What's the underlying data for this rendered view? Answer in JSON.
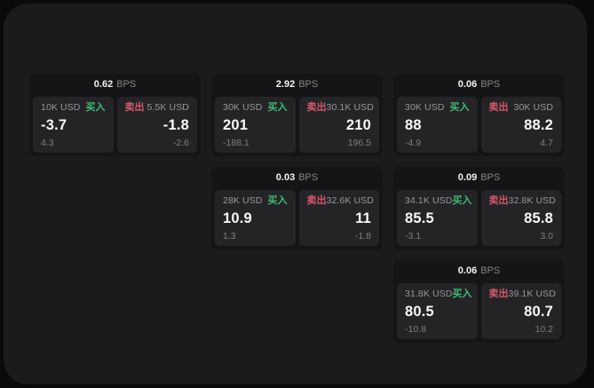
{
  "labels": {
    "bps": "BPS",
    "buy": "买入",
    "sell": "卖出"
  },
  "colors": {
    "page_background": "#0a0a0b",
    "panel_background": "#1b1b1d",
    "card_background": "#151517",
    "tile_background": "#242427",
    "buy_green": "#3dbd74",
    "sell_red": "#d8566b",
    "primary_text": "#fafafa",
    "muted_text": "#97979b"
  },
  "cards": [
    {
      "bps": "0.62",
      "buy_amount": "10K USD",
      "buy_price": "-3.7",
      "buy_delta": "4.3",
      "sell_amount": "5.5K USD",
      "sell_price": "-1.8",
      "sell_delta": "-2.6"
    },
    {
      "bps": "2.92",
      "buy_amount": "30K USD",
      "buy_price": "201",
      "buy_delta": "-188.1",
      "sell_amount": "30.1K USD",
      "sell_price": "210",
      "sell_delta": "196.5"
    },
    {
      "bps": "0.06",
      "buy_amount": "30K USD",
      "buy_price": "88",
      "buy_delta": "-4.9",
      "sell_amount": "30K USD",
      "sell_price": "88.2",
      "sell_delta": "4.7"
    },
    {
      "bps": "0.03",
      "buy_amount": "28K USD",
      "buy_price": "10.9",
      "buy_delta": "1.3",
      "sell_amount": "32.6K USD",
      "sell_price": "11",
      "sell_delta": "-1.8"
    },
    {
      "bps": "0.09",
      "buy_amount": "34.1K USD",
      "buy_price": "85.5",
      "buy_delta": "-3.1",
      "sell_amount": "32.8K USD",
      "sell_price": "85.8",
      "sell_delta": "3.0"
    },
    {
      "bps": "0.06",
      "buy_amount": "31.8K USD",
      "buy_price": "80.5",
      "buy_delta": "-10.8",
      "sell_amount": "39.1K USD",
      "sell_price": "80.7",
      "sell_delta": "10.2"
    }
  ]
}
